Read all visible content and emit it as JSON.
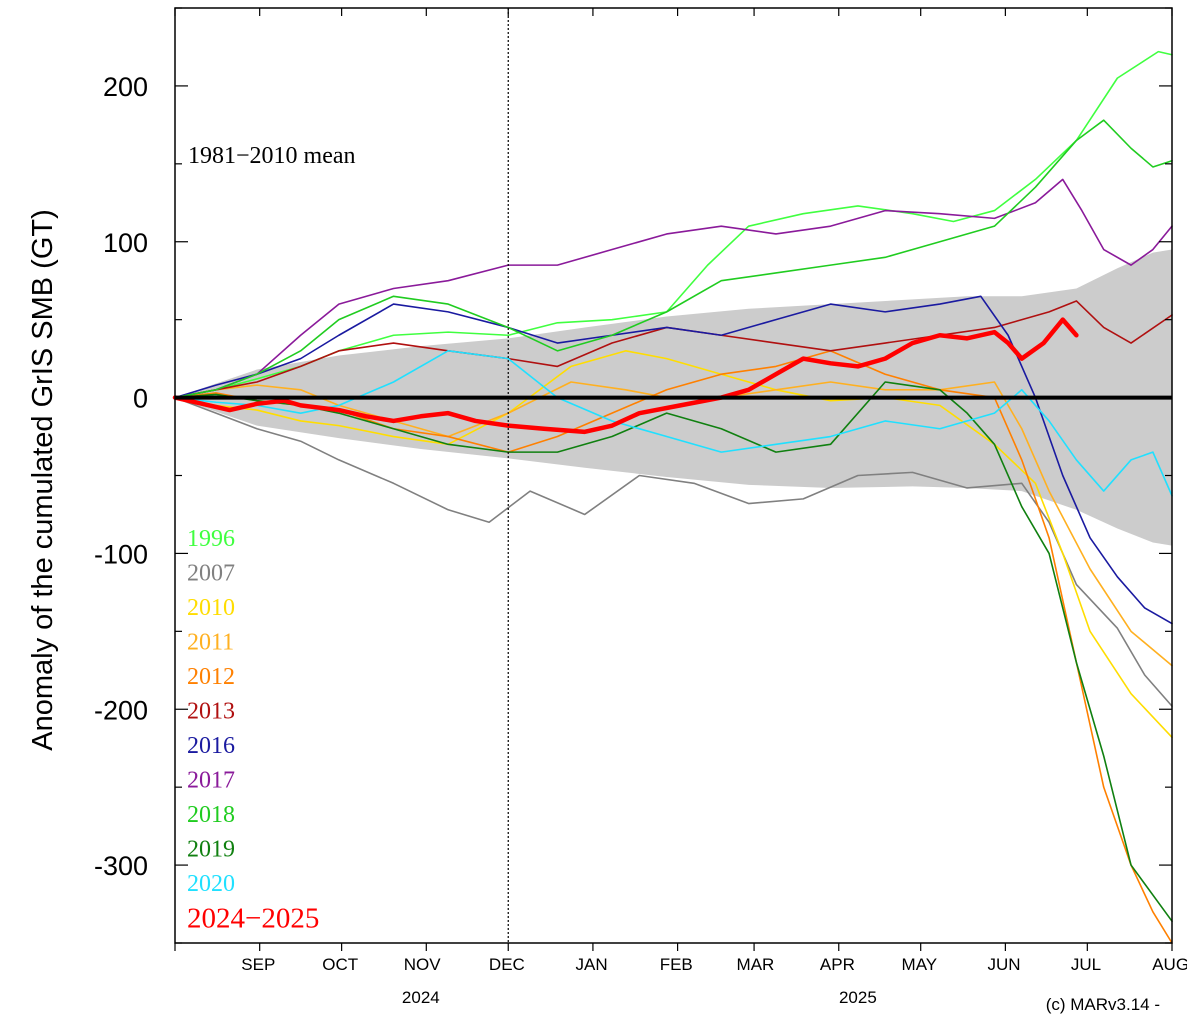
{
  "chart_data": {
    "type": "line",
    "ylabel": "Anomaly of the cumulated GrIS SMB (GT)",
    "annotation": "1981−2010 mean",
    "credit": "(c) MARv3.14 -",
    "ylim": [
      -350,
      250
    ],
    "yticks": [
      200,
      100,
      0,
      -100,
      -200,
      -300
    ],
    "ytick_labels": [
      "200",
      "100",
      "0",
      "-100",
      "-200",
      "-300"
    ],
    "x_unit": "days since 1 Aug 2024",
    "xlim": [
      0,
      365
    ],
    "months": [
      {
        "label": "SEP",
        "x": 46
      },
      {
        "label": "OCT",
        "x": 76
      },
      {
        "label": "NOV",
        "x": 106
      },
      {
        "label": "DEC",
        "x": 137
      },
      {
        "label": "JAN",
        "x": 168
      },
      {
        "label": "FEB",
        "x": 199
      },
      {
        "label": "MAR",
        "x": 228
      },
      {
        "label": "APR",
        "x": 258
      },
      {
        "label": "MAY",
        "x": 288
      },
      {
        "label": "JUN",
        "x": 319
      },
      {
        "label": "JUL",
        "x": 349
      },
      {
        "label": "AUG",
        "x": 380
      }
    ],
    "years": [
      {
        "label": "2024",
        "x": 90
      },
      {
        "label": "2025",
        "x": 250
      }
    ],
    "year_boundary_x": 122,
    "mean_band": {
      "name": "1981−2010 mean",
      "color": "#cccccc",
      "x": [
        0,
        30,
        60,
        90,
        122,
        150,
        180,
        210,
        240,
        270,
        290,
        310,
        330,
        345,
        358,
        365
      ],
      "upper": [
        0,
        18,
        27,
        33,
        38,
        45,
        52,
        57,
        60,
        63,
        65,
        65,
        70,
        83,
        93,
        95
      ],
      "lower": [
        0,
        -18,
        -26,
        -33,
        -39,
        -45,
        -51,
        -56,
        -58,
        -57,
        -58,
        -60,
        -72,
        -84,
        -93,
        -95
      ]
    },
    "series": [
      {
        "name": "1996",
        "color": "#40ff40",
        "width": 1.6,
        "x": [
          0,
          15,
          30,
          46,
          60,
          80,
          100,
          122,
          140,
          160,
          180,
          195,
          210,
          230,
          250,
          270,
          285,
          300,
          315,
          330,
          345,
          360,
          365
        ],
        "y": [
          0,
          5,
          12,
          20,
          30,
          40,
          42,
          40,
          48,
          50,
          55,
          85,
          110,
          118,
          123,
          118,
          113,
          120,
          140,
          165,
          205,
          222,
          220
        ]
      },
      {
        "name": "2007",
        "color": "#808080",
        "width": 1.6,
        "x": [
          0,
          15,
          30,
          46,
          60,
          80,
          100,
          115,
          130,
          150,
          170,
          190,
          210,
          230,
          250,
          270,
          290,
          310,
          320,
          330,
          345,
          355,
          365
        ],
        "y": [
          0,
          -10,
          -20,
          -28,
          -40,
          -55,
          -72,
          -80,
          -60,
          -75,
          -50,
          -55,
          -68,
          -65,
          -50,
          -48,
          -58,
          -55,
          -80,
          -120,
          -148,
          -178,
          -198
        ]
      },
      {
        "name": "2010",
        "color": "#ffdd00",
        "width": 1.6,
        "x": [
          0,
          15,
          30,
          46,
          60,
          80,
          100,
          122,
          145,
          165,
          180,
          200,
          220,
          240,
          260,
          280,
          300,
          315,
          325,
          335,
          350,
          365
        ],
        "y": [
          0,
          -5,
          -8,
          -15,
          -18,
          -25,
          -30,
          -10,
          20,
          30,
          25,
          15,
          5,
          -2,
          0,
          -5,
          -30,
          -55,
          -100,
          -150,
          -190,
          -218
        ]
      },
      {
        "name": "2011",
        "color": "#ffb020",
        "width": 1.6,
        "x": [
          0,
          15,
          30,
          46,
          60,
          80,
          100,
          122,
          145,
          165,
          180,
          200,
          220,
          240,
          260,
          280,
          300,
          310,
          320,
          335,
          350,
          365
        ],
        "y": [
          0,
          5,
          8,
          5,
          -5,
          -15,
          -25,
          -10,
          10,
          5,
          0,
          0,
          5,
          10,
          5,
          5,
          10,
          -20,
          -60,
          -110,
          -150,
          -172
        ]
      },
      {
        "name": "2012",
        "color": "#ff8000",
        "width": 1.6,
        "x": [
          0,
          15,
          30,
          46,
          60,
          80,
          100,
          122,
          140,
          160,
          180,
          200,
          220,
          240,
          260,
          280,
          300,
          310,
          320,
          330,
          340,
          350,
          358,
          365
        ],
        "y": [
          0,
          3,
          -2,
          -5,
          -8,
          -20,
          -25,
          -35,
          -25,
          -10,
          5,
          15,
          20,
          30,
          15,
          5,
          0,
          -40,
          -90,
          -170,
          -250,
          -300,
          -330,
          -350
        ]
      },
      {
        "name": "2013",
        "color": "#b01010",
        "width": 1.6,
        "x": [
          0,
          15,
          30,
          46,
          60,
          80,
          100,
          122,
          140,
          160,
          180,
          200,
          220,
          240,
          260,
          280,
          300,
          320,
          330,
          340,
          350,
          365
        ],
        "y": [
          0,
          5,
          10,
          20,
          30,
          35,
          30,
          25,
          20,
          35,
          45,
          40,
          35,
          30,
          35,
          40,
          45,
          55,
          62,
          45,
          35,
          53
        ]
      },
      {
        "name": "2016",
        "color": "#1a1aa0",
        "width": 1.6,
        "x": [
          0,
          15,
          30,
          46,
          60,
          80,
          100,
          122,
          140,
          160,
          180,
          200,
          220,
          240,
          260,
          280,
          295,
          305,
          315,
          325,
          335,
          345,
          355,
          365
        ],
        "y": [
          0,
          8,
          15,
          25,
          40,
          60,
          55,
          45,
          35,
          40,
          45,
          40,
          50,
          60,
          55,
          60,
          65,
          40,
          0,
          -50,
          -90,
          -115,
          -135,
          -145
        ]
      },
      {
        "name": "2017",
        "color": "#8a1a9a",
        "width": 1.6,
        "x": [
          0,
          15,
          30,
          46,
          60,
          80,
          100,
          122,
          140,
          160,
          180,
          200,
          220,
          240,
          260,
          280,
          300,
          315,
          325,
          332,
          340,
          350,
          358,
          365
        ],
        "y": [
          0,
          5,
          15,
          40,
          60,
          70,
          75,
          85,
          85,
          95,
          105,
          110,
          105,
          110,
          120,
          118,
          115,
          125,
          140,
          120,
          95,
          85,
          95,
          110
        ]
      },
      {
        "name": "2018",
        "color": "#20cc20",
        "width": 1.6,
        "x": [
          0,
          15,
          30,
          46,
          60,
          80,
          100,
          122,
          140,
          160,
          180,
          200,
          220,
          240,
          260,
          280,
          300,
          315,
          330,
          340,
          350,
          358,
          365
        ],
        "y": [
          0,
          5,
          15,
          30,
          50,
          65,
          60,
          45,
          30,
          40,
          55,
          75,
          80,
          85,
          90,
          100,
          110,
          135,
          165,
          178,
          160,
          148,
          152
        ]
      },
      {
        "name": "2019",
        "color": "#108010",
        "width": 1.6,
        "x": [
          0,
          15,
          30,
          46,
          60,
          80,
          100,
          122,
          140,
          160,
          180,
          200,
          220,
          240,
          260,
          280,
          290,
          300,
          310,
          320,
          330,
          340,
          350,
          365
        ],
        "y": [
          0,
          2,
          -2,
          -5,
          -10,
          -20,
          -30,
          -35,
          -35,
          -25,
          -10,
          -20,
          -35,
          -30,
          10,
          5,
          -10,
          -30,
          -70,
          -100,
          -170,
          -230,
          -300,
          -336
        ]
      },
      {
        "name": "2020",
        "color": "#20e0ff",
        "width": 1.6,
        "x": [
          0,
          15,
          30,
          46,
          60,
          80,
          100,
          122,
          140,
          160,
          180,
          200,
          220,
          240,
          260,
          280,
          300,
          310,
          320,
          330,
          340,
          350,
          358,
          365
        ],
        "y": [
          0,
          -3,
          -5,
          -10,
          -5,
          10,
          30,
          25,
          0,
          -15,
          -25,
          -35,
          -30,
          -25,
          -15,
          -20,
          -10,
          5,
          -15,
          -40,
          -60,
          -40,
          -35,
          -63
        ]
      },
      {
        "name": "2024−2025",
        "color": "#ff0000",
        "width": 4.5,
        "x": [
          0,
          10,
          20,
          30,
          40,
          46,
          60,
          70,
          80,
          90,
          100,
          110,
          122,
          135,
          150,
          160,
          170,
          185,
          200,
          210,
          220,
          230,
          240,
          250,
          260,
          270,
          280,
          290,
          300,
          305,
          310,
          318,
          325,
          330
        ],
        "y": [
          0,
          -4,
          -8,
          -4,
          -2,
          -5,
          -8,
          -12,
          -15,
          -12,
          -10,
          -15,
          -18,
          -20,
          -22,
          -18,
          -10,
          -5,
          0,
          5,
          15,
          25,
          22,
          20,
          25,
          35,
          40,
          38,
          42,
          35,
          25,
          35,
          50,
          40
        ]
      }
    ]
  }
}
